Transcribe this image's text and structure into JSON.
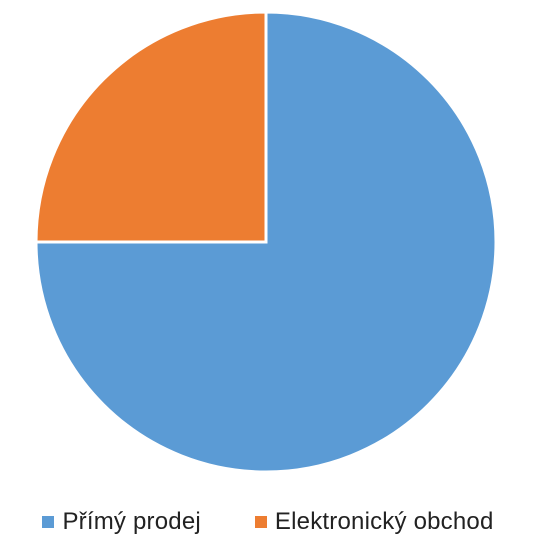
{
  "chart_data": {
    "type": "pie",
    "title": "",
    "start_angle": "12 o'clock",
    "direction": "clockwise",
    "legend_position": "bottom",
    "slices": [
      {
        "label": "Přímý prodej",
        "value": 75,
        "color": "#5b9bd5"
      },
      {
        "label": "Elektronický obchod",
        "value": 25,
        "color": "#ed7d31"
      }
    ]
  }
}
